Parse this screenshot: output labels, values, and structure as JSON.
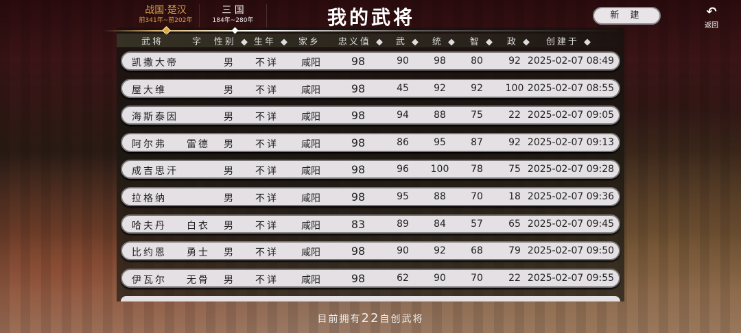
{
  "tabs": [
    {
      "label": "战国·楚汉",
      "range": "前341年~前202年",
      "active": true
    },
    {
      "label": "三 国",
      "range": "184年~280年",
      "active": false
    }
  ],
  "title": "我的武将",
  "new_button": "新 建",
  "back": {
    "icon": "undo-arrow-icon",
    "label": "返回"
  },
  "columns": [
    "武将",
    "字",
    "性别 ◆",
    "生年 ◆",
    "家乡",
    "忠义值 ◆",
    "武 ◆",
    "统 ◆",
    "智 ◆",
    "政 ◆",
    "创建于 ◆"
  ],
  "rows": [
    {
      "name": "凯撒大帝",
      "zi": "",
      "gender": "男",
      "birth": "不详",
      "home": "咸阳",
      "loyalty": "98",
      "wu": "90",
      "tong": "98",
      "zhi": "80",
      "zheng": "92",
      "created": "2025-02-07 08:49"
    },
    {
      "name": "屋大维",
      "zi": "",
      "gender": "男",
      "birth": "不详",
      "home": "咸阳",
      "loyalty": "98",
      "wu": "45",
      "tong": "92",
      "zhi": "92",
      "zheng": "100",
      "created": "2025-02-07 08:55"
    },
    {
      "name": "海斯泰因",
      "zi": "",
      "gender": "男",
      "birth": "不详",
      "home": "咸阳",
      "loyalty": "98",
      "wu": "94",
      "tong": "88",
      "zhi": "75",
      "zheng": "22",
      "created": "2025-02-07 09:05"
    },
    {
      "name": "阿尔弗",
      "zi": "雷德",
      "gender": "男",
      "birth": "不详",
      "home": "咸阳",
      "loyalty": "98",
      "wu": "86",
      "tong": "95",
      "zhi": "87",
      "zheng": "92",
      "created": "2025-02-07 09:13"
    },
    {
      "name": "成吉思汗",
      "zi": "",
      "gender": "男",
      "birth": "不详",
      "home": "咸阳",
      "loyalty": "98",
      "wu": "96",
      "tong": "100",
      "zhi": "78",
      "zheng": "75",
      "created": "2025-02-07 09:28"
    },
    {
      "name": "拉格纳",
      "zi": "",
      "gender": "男",
      "birth": "不详",
      "home": "咸阳",
      "loyalty": "98",
      "wu": "95",
      "tong": "88",
      "zhi": "70",
      "zheng": "18",
      "created": "2025-02-07 09:36"
    },
    {
      "name": "哈夫丹",
      "zi": "白衣",
      "gender": "男",
      "birth": "不详",
      "home": "咸阳",
      "loyalty": "83",
      "wu": "89",
      "tong": "84",
      "zhi": "57",
      "zheng": "65",
      "created": "2025-02-07 09:45"
    },
    {
      "name": "比约恩",
      "zi": "勇士",
      "gender": "男",
      "birth": "不详",
      "home": "咸阳",
      "loyalty": "98",
      "wu": "90",
      "tong": "92",
      "zhi": "68",
      "zheng": "79",
      "created": "2025-02-07 09:50"
    },
    {
      "name": "伊瓦尔",
      "zi": "无骨",
      "gender": "男",
      "birth": "不详",
      "home": "咸阳",
      "loyalty": "98",
      "wu": "62",
      "tong": "90",
      "zhi": "70",
      "zheng": "22",
      "created": "2025-02-07 09:55"
    }
  ],
  "footer": {
    "prefix": "目前拥有",
    "count": "22",
    "suffix": "自创武将"
  }
}
